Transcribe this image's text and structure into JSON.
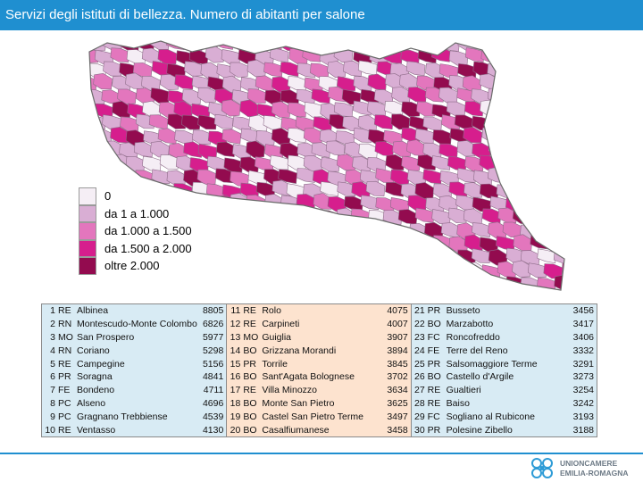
{
  "title": "Servizi degli istituti di bellezza. Numero di abitanti per salone",
  "legend": [
    {
      "label": "0",
      "color": "#f5eef5"
    },
    {
      "label": "da 1 a 1.000",
      "color": "#d9aed4"
    },
    {
      "label": "da 1.000 a 1.500",
      "color": "#e376bd"
    },
    {
      "label": "da 1.500 a 2.000",
      "color": "#d61e8d"
    },
    {
      "label": "oltre 2.000",
      "color": "#930b4f"
    }
  ],
  "ranking": [
    {
      "rank": "1",
      "prov": "RE",
      "name": "Albinea",
      "value": "8805"
    },
    {
      "rank": "2",
      "prov": "RN",
      "name": "Montescudo-Monte Colombo",
      "value": "6826"
    },
    {
      "rank": "3",
      "prov": "MO",
      "name": "San Prospero",
      "value": "5977"
    },
    {
      "rank": "4",
      "prov": "RN",
      "name": "Coriano",
      "value": "5298"
    },
    {
      "rank": "5",
      "prov": "RE",
      "name": "Campegine",
      "value": "5156"
    },
    {
      "rank": "6",
      "prov": "PR",
      "name": "Soragna",
      "value": "4841"
    },
    {
      "rank": "7",
      "prov": "FE",
      "name": "Bondeno",
      "value": "4711"
    },
    {
      "rank": "8",
      "prov": "PC",
      "name": "Alseno",
      "value": "4696"
    },
    {
      "rank": "9",
      "prov": "PC",
      "name": "Gragnano Trebbiense",
      "value": "4539"
    },
    {
      "rank": "10",
      "prov": "RE",
      "name": "Ventasso",
      "value": "4130"
    },
    {
      "rank": "11",
      "prov": "RE",
      "name": "Rolo",
      "value": "4075"
    },
    {
      "rank": "12",
      "prov": "RE",
      "name": "Carpineti",
      "value": "4007"
    },
    {
      "rank": "13",
      "prov": "MO",
      "name": "Guiglia",
      "value": "3907"
    },
    {
      "rank": "14",
      "prov": "BO",
      "name": "Grizzana Morandi",
      "value": "3894"
    },
    {
      "rank": "15",
      "prov": "PR",
      "name": "Torrile",
      "value": "3845"
    },
    {
      "rank": "16",
      "prov": "BO",
      "name": "Sant'Agata Bolognese",
      "value": "3702"
    },
    {
      "rank": "17",
      "prov": "RE",
      "name": "Villa Minozzo",
      "value": "3634"
    },
    {
      "rank": "18",
      "prov": "BO",
      "name": "Monte San Pietro",
      "value": "3625"
    },
    {
      "rank": "19",
      "prov": "BO",
      "name": "Castel San Pietro Terme",
      "value": "3497"
    },
    {
      "rank": "20",
      "prov": "BO",
      "name": "Casalfiumanese",
      "value": "3458"
    },
    {
      "rank": "21",
      "prov": "PR",
      "name": "Busseto",
      "value": "3456"
    },
    {
      "rank": "22",
      "prov": "BO",
      "name": "Marzabotto",
      "value": "3417"
    },
    {
      "rank": "23",
      "prov": "FC",
      "name": "Roncofreddo",
      "value": "3406"
    },
    {
      "rank": "24",
      "prov": "FE",
      "name": "Terre del Reno",
      "value": "3332"
    },
    {
      "rank": "25",
      "prov": "PR",
      "name": "Salsomaggiore Terme",
      "value": "3291"
    },
    {
      "rank": "26",
      "prov": "BO",
      "name": "Castello d'Argile",
      "value": "3273"
    },
    {
      "rank": "27",
      "prov": "RE",
      "name": "Gualtieri",
      "value": "3254"
    },
    {
      "rank": "28",
      "prov": "RE",
      "name": "Baiso",
      "value": "3242"
    },
    {
      "rank": "29",
      "prov": "FC",
      "name": "Sogliano al Rubicone",
      "value": "3193"
    },
    {
      "rank": "30",
      "prov": "PR",
      "name": "Polesine Zibello",
      "value": "3188"
    }
  ],
  "logo": {
    "line1": "UNIONCAMERE",
    "line2": "EMILIA-ROMAGNA"
  },
  "icons": {
    "logo": "unioncamere-logo-icon"
  },
  "colors": {
    "accent": "#1f8fd0",
    "table_blue": "#d8ebf4",
    "table_peach": "#fde3cf"
  }
}
